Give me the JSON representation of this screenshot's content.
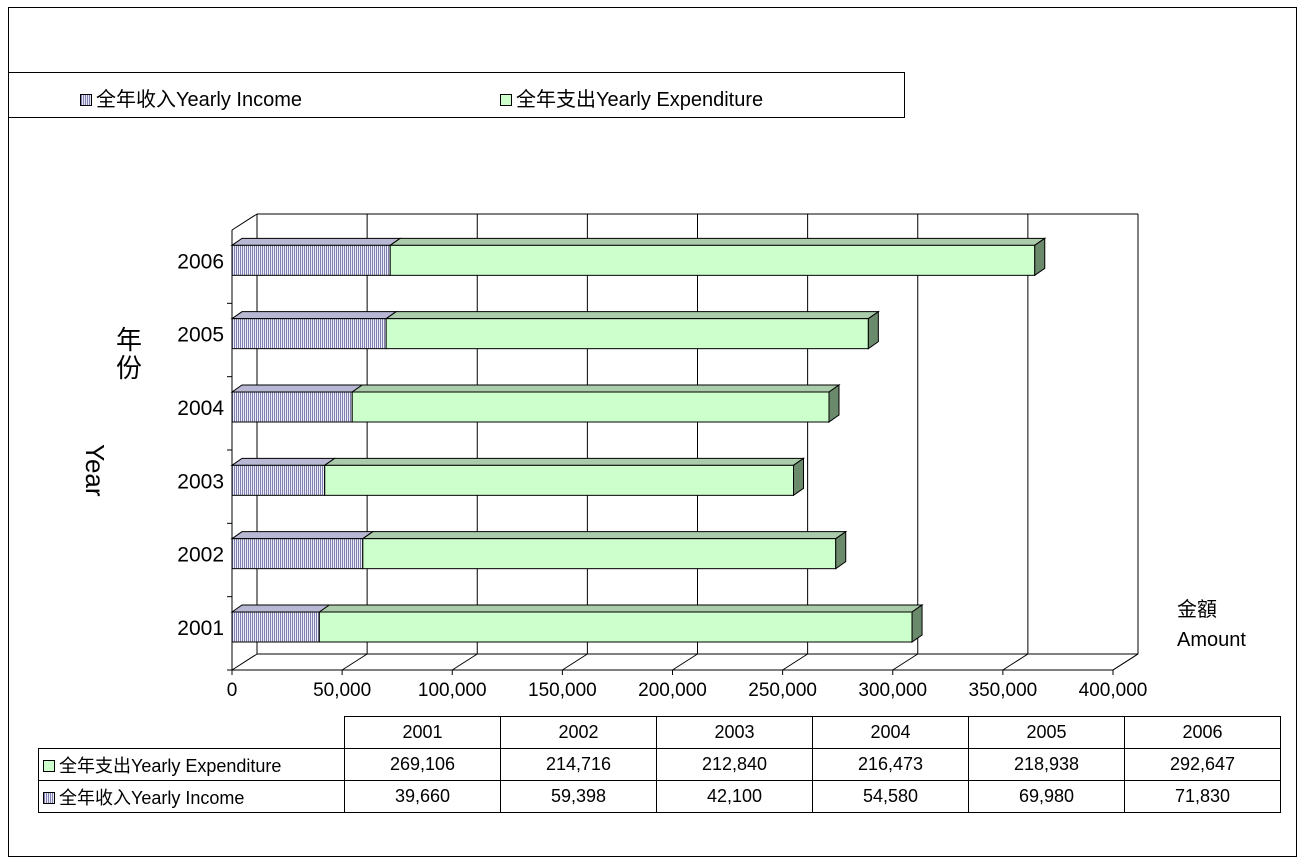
{
  "chart_data": {
    "type": "bar",
    "orientation": "horizontal",
    "stacked": true,
    "three_d": true,
    "categories": [
      "2001",
      "2002",
      "2003",
      "2004",
      "2005",
      "2006"
    ],
    "series": [
      {
        "name": "全年收入Yearly Income",
        "values": [
          39660,
          59398,
          42100,
          54580,
          69980,
          71830
        ],
        "color": "#e8e8f4"
      },
      {
        "name": "全年支出Yearly Expenditure",
        "values": [
          269106,
          214716,
          212840,
          216473,
          218938,
          292647
        ],
        "color": "#ccffcc"
      }
    ],
    "xlim": [
      0,
      400000
    ],
    "x_ticks": [
      "0",
      "50,000",
      "100,000",
      "150,000",
      "200,000",
      "250,000",
      "300,000",
      "350,000",
      "400,000"
    ],
    "ylabel_cn": "年份",
    "ylabel_en": "Year",
    "xlabel_cn": "金額",
    "xlabel_en": "Amount",
    "legend_position": "top",
    "grid": true
  },
  "legend": {
    "income": "全年收入Yearly Income",
    "expenditure": "全年支出Yearly Expenditure"
  },
  "table": {
    "years": [
      "2001",
      "2002",
      "2003",
      "2004",
      "2005",
      "2006"
    ],
    "rows": [
      {
        "label": "全年支出Yearly Expenditure",
        "swatch": "exp",
        "values": [
          "269,106",
          "214,716",
          "212,840",
          "216,473",
          "218,938",
          "292,647"
        ]
      },
      {
        "label": "全年收入Yearly Income",
        "swatch": "income",
        "values": [
          "39,660",
          "59,398",
          "42,100",
          "54,580",
          "69,980",
          "71,830"
        ]
      }
    ]
  },
  "colors": {
    "income_fill": "#e8e8f4",
    "income_hatch": "#8080b0",
    "expenditure_fill": "#ccffcc",
    "expenditure_side": "#6b8a6b",
    "expenditure_top": "#aaccaa"
  }
}
